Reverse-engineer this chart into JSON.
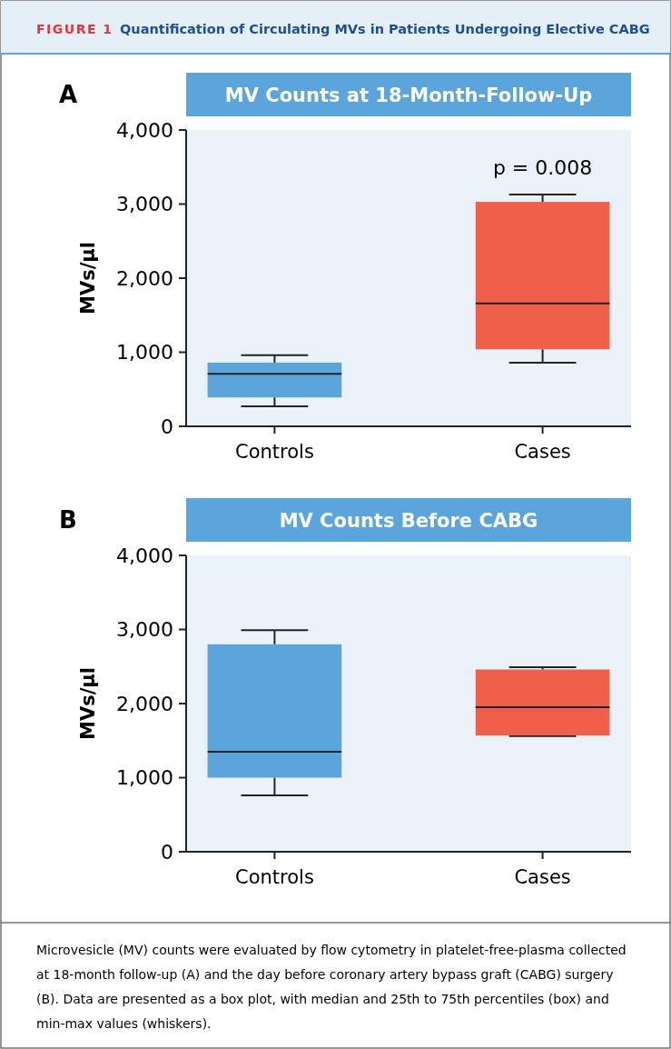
{
  "chart_data": [
    {
      "type": "box",
      "title": "MV Counts at 18-Month-Follow-Up",
      "ylabel": "MVs/µl",
      "categories": [
        "Controls",
        "Cases"
      ],
      "colors": [
        "#5ba4dc",
        "#f05f4a"
      ],
      "boxes": [
        {
          "low": 270,
          "q1": 390,
          "median": 710,
          "q3": 860,
          "high": 960
        },
        {
          "low": 860,
          "q1": 1040,
          "median": 1660,
          "q3": 3030,
          "high": 3130
        }
      ],
      "ylim": [
        0,
        4000
      ],
      "yticks": [
        {
          "value": 0,
          "label": "0"
        },
        {
          "value": 1000,
          "label": "1,000"
        },
        {
          "value": 2000,
          "label": "2,000"
        },
        {
          "value": 3000,
          "label": "3,000"
        },
        {
          "value": 4000,
          "label": "4,000"
        }
      ],
      "grid": false,
      "annotations": [
        "FIGURE 1",
        "Quantification of Circulating MVs in Patients Undergoing Elective CABG",
        "A",
        "p = 0.008"
      ]
    },
    {
      "type": "box",
      "title": "MV Counts Before CABG",
      "ylabel": "MVs/µl",
      "categories": [
        "Controls",
        "Cases"
      ],
      "colors": [
        "#5ba4dc",
        "#f05f4a"
      ],
      "boxes": [
        {
          "low": 760,
          "q1": 1000,
          "median": 1350,
          "q3": 2800,
          "high": 2990
        },
        {
          "low": 1560,
          "q1": 1570,
          "median": 1950,
          "q3": 2460,
          "high": 2490
        }
      ],
      "ylim": [
        0,
        4000
      ],
      "yticks": [
        {
          "value": 0,
          "label": "0"
        },
        {
          "value": 1000,
          "label": "1,000"
        },
        {
          "value": 2000,
          "label": "2,000"
        },
        {
          "value": 3000,
          "label": "3,000"
        },
        {
          "value": 4000,
          "label": "4,000"
        }
      ],
      "grid": false,
      "annotations": [
        "B",
        "Microvesicle (MV) counts were evaluated by flow cytometry in platelet-free-plasma collected at 18-month follow-up (A) and the day before coronary artery bypass graft (CABG) surgery (B). Data are presented as a box plot, with median and 25th to 75th percentiles (box) and min-max values (whiskers)."
      ]
    }
  ]
}
